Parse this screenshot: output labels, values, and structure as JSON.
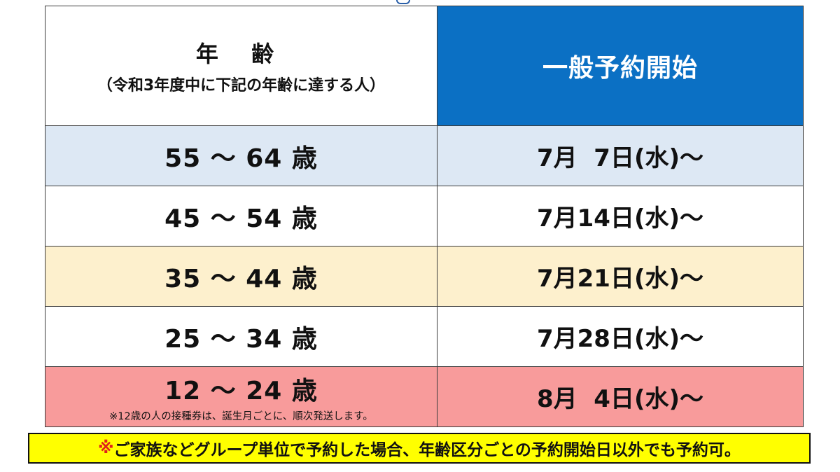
{
  "header": {
    "age_title": "年 齢",
    "age_subtitle": "（令和3年度中に下記の年齢に達する人）",
    "start_title": "一般予約開始"
  },
  "rows": [
    {
      "age": "55 ～ 64 歳",
      "date": "7月  7日(水)～",
      "note": ""
    },
    {
      "age": "45 ～ 54 歳",
      "date": "7月14日(水)～",
      "note": ""
    },
    {
      "age": "35 ～ 44 歳",
      "date": "7月21日(水)～",
      "note": ""
    },
    {
      "age": "25 ～ 34 歳",
      "date": "7月28日(水)～",
      "note": ""
    },
    {
      "age": "12 ～ 24 歳",
      "date": "8月  4日(水)～",
      "note": "※12歳の人の接種券は、誕生月ごとに、順次発送します。"
    }
  ],
  "footer": {
    "mark": "※",
    "text": "ご家族などグループ単位で予約した場合、年齢区分ごとの予約開始日以外でも予約可。"
  },
  "colors": {
    "header_blue": "#0b70c4",
    "row_blue": "#dde8f4",
    "row_yellow": "#fdf0cd",
    "row_red": "#f89b9b",
    "footer_yellow": "#ffff00",
    "footer_mark_red": "#e0201c"
  }
}
